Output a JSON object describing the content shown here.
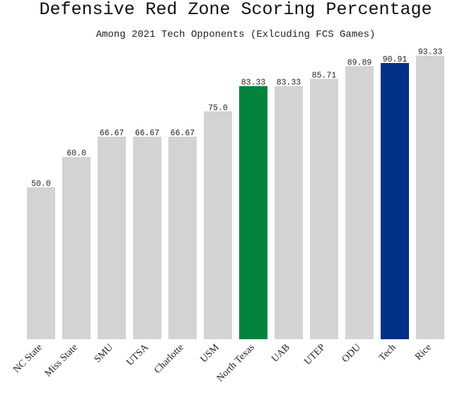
{
  "chart_data": {
    "type": "bar",
    "title": "Defensive Red Zone Scoring Percentage",
    "subtitle": "Among 2021 Tech Opponents (Exlcuding FCS Games)",
    "xlabel": "",
    "ylabel": "",
    "ylim": [
      0,
      100
    ],
    "grid": false,
    "categories": [
      "NC State",
      "Miss State",
      "SMU",
      "UTSA",
      "Charlotte",
      "USM",
      "North Texas",
      "UAB",
      "UTEP",
      "ODU",
      "Tech",
      "Rice"
    ],
    "values": [
      50.0,
      60.0,
      66.67,
      66.67,
      66.67,
      75.0,
      83.33,
      83.33,
      85.71,
      89.89,
      90.91,
      93.33
    ],
    "value_labels": [
      "50.0",
      "60.0",
      "66.67",
      "66.67",
      "66.67",
      "75.0",
      "83.33",
      "83.33",
      "85.71",
      "89.89",
      "90.91",
      "93.33"
    ],
    "colors": [
      "#d3d3d3",
      "#d3d3d3",
      "#d3d3d3",
      "#d3d3d3",
      "#d3d3d3",
      "#d3d3d3",
      "#00843d",
      "#d3d3d3",
      "#d3d3d3",
      "#d3d3d3",
      "#003087",
      "#d3d3d3"
    ]
  }
}
